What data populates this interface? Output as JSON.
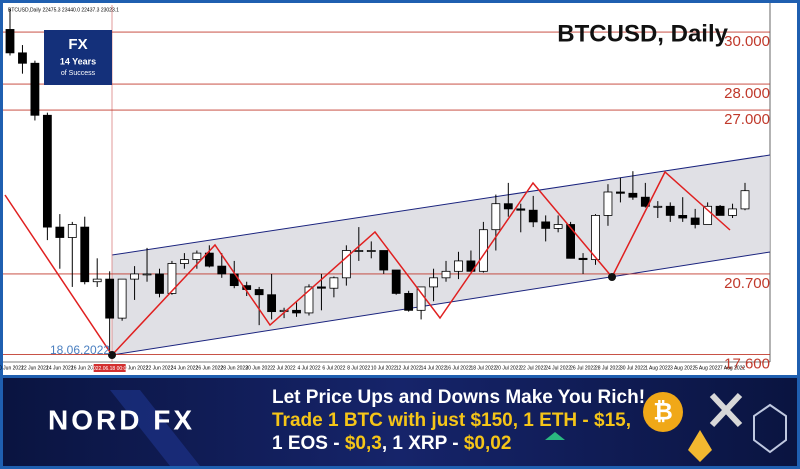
{
  "chart_data": {
    "type": "candlestick",
    "title": "BTCUSD, Daily",
    "info": "BTCUSD,Daily  22475.3 23440.0 22437.3 23023.1",
    "annotation": "18.06.2022",
    "crosshair_label": "2022.06.18 00:00",
    "categories": [
      "10 Jun 2022",
      null,
      "12 Jun 2022",
      null,
      "14 Jun 2022",
      null,
      "16 Jun 2022",
      null,
      null,
      null,
      "20 Jun 2022",
      null,
      "22 Jun 2022",
      null,
      "24 Jun 2022",
      null,
      "26 Jun 2022",
      null,
      "28 Jun 2022",
      null,
      "30 Jun 2022",
      null,
      "2 Jul 2022",
      null,
      "4 Jul 2022",
      null,
      "6 Jul 2022",
      null,
      "8 Jul 2022",
      null,
      "10 Jul 2022",
      null,
      "12 Jul 2022",
      null,
      "14 Jul 2022",
      null,
      "16 Jul 2022",
      null,
      "18 Jul 2022",
      null,
      "20 Jul 2022",
      null,
      "22 Jul 2022",
      null,
      "24 Jul 2022",
      null,
      "26 Jul 2022",
      null,
      "28 Jul 2022",
      null,
      "30 Jul 2022",
      null,
      "1 Aug 2022",
      null,
      "3 Aug 2022",
      null,
      "5 Aug 2022",
      null,
      "7 Aug 2022",
      null
    ],
    "open": [
      30100,
      29200,
      28800,
      26800,
      22500,
      22100,
      22500,
      20400,
      20500,
      19000,
      20500,
      20700,
      20700,
      19950,
      21100,
      21250,
      21500,
      21000,
      20700,
      20250,
      20100,
      19900,
      19250,
      19300,
      19200,
      20200,
      20150,
      20550,
      21600,
      21600,
      21600,
      20850,
      19950,
      19300,
      20200,
      20550,
      20800,
      21200,
      20800,
      22400,
      23400,
      23200,
      23150,
      22700,
      22450,
      22600,
      21300,
      21250,
      22950,
      23850,
      23800,
      23650,
      23300,
      23300,
      22950,
      22850,
      22600,
      23300,
      22950,
      23200
    ],
    "high": [
      30900,
      29500,
      28900,
      26900,
      23000,
      22700,
      22900,
      21300,
      20800,
      20500,
      21000,
      21700,
      20900,
      21200,
      21500,
      21600,
      21800,
      21500,
      21200,
      20400,
      20200,
      20700,
      19400,
      19600,
      20300,
      20700,
      20600,
      21800,
      22500,
      21950,
      21600,
      20850,
      20050,
      20200,
      20900,
      21200,
      21550,
      21600,
      22700,
      23750,
      24200,
      23400,
      23700,
      22950,
      22950,
      22700,
      21500,
      23000,
      24150,
      24400,
      24650,
      24200,
      23500,
      23450,
      23650,
      23200,
      23450,
      23350,
      23400,
      24200
    ],
    "low": [
      29100,
      28400,
      26600,
      22000,
      20900,
      20200,
      20300,
      20200,
      17600,
      18900,
      19700,
      20400,
      19800,
      19900,
      20900,
      20900,
      20950,
      20550,
      20150,
      19850,
      18730,
      18950,
      19000,
      19050,
      19100,
      19300,
      19800,
      20250,
      21200,
      21300,
      20700,
      19900,
      19250,
      18950,
      19650,
      20400,
      20500,
      20800,
      20750,
      21600,
      22900,
      22300,
      22500,
      21950,
      22300,
      21300,
      20700,
      21050,
      22550,
      23450,
      23550,
      23250,
      22850,
      22700,
      22700,
      22450,
      22600,
      22950,
      22850,
      23150
    ],
    "close": [
      29200,
      28800,
      26800,
      22500,
      22100,
      22600,
      20400,
      20500,
      19000,
      20500,
      20700,
      20700,
      19950,
      21100,
      21250,
      21500,
      21000,
      20700,
      20250,
      20100,
      19900,
      19250,
      19300,
      19200,
      20200,
      20150,
      20550,
      21600,
      21600,
      21600,
      20850,
      19950,
      19300,
      20200,
      20550,
      20800,
      21200,
      20800,
      22400,
      23400,
      23200,
      23150,
      22700,
      22450,
      22600,
      21300,
      21250,
      22950,
      23850,
      23800,
      23650,
      23300,
      23300,
      22950,
      22850,
      22600,
      23300,
      22950,
      23200,
      23900
    ],
    "up_color": "#ffffff",
    "down_color": "#000000",
    "ylim": [
      17390,
      31040
    ],
    "levels": [
      {
        "value": 30000,
        "label": "30.000"
      },
      {
        "value": 28000,
        "label": "28.000"
      },
      {
        "value": 27000,
        "label": "27.000"
      },
      {
        "value": 20700,
        "label": "20.700"
      },
      {
        "value": 17600,
        "label": "17.600"
      }
    ],
    "level_color": "#c0392b"
  },
  "logo": {
    "mark": "FX",
    "line1": "14 Years",
    "line2": "of Success"
  },
  "banner": {
    "brand": "NORD FX",
    "headline": "Let Price Ups and Downs Make You Rich!",
    "line1": "Trade 1 BTC with just $150, 1 ETH - $15,",
    "line2": [
      {
        "text": "1 EOS - ",
        "color": "#ffffff"
      },
      {
        "text": "$0,3",
        "color": "#f5c518"
      },
      {
        "text": ", 1 XRP - ",
        "color": "#ffffff"
      },
      {
        "text": "$0,02",
        "color": "#f5c518"
      }
    ]
  }
}
